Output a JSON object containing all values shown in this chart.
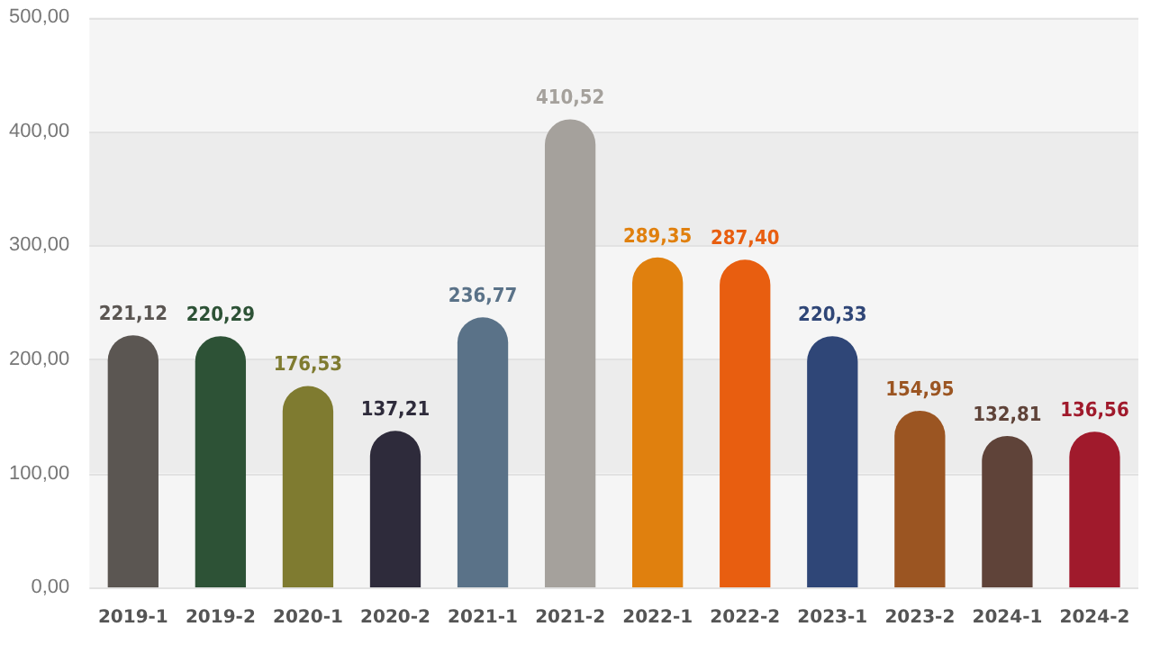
{
  "chart_data": {
    "type": "bar",
    "categories": [
      "2019-1",
      "2019-2",
      "2020-1",
      "2020-2",
      "2021-1",
      "2021-2",
      "2022-1",
      "2022-2",
      "2023-1",
      "2023-2",
      "2024-1",
      "2024-2"
    ],
    "values": [
      221.12,
      220.29,
      176.53,
      137.21,
      236.77,
      410.52,
      289.35,
      287.4,
      220.33,
      154.95,
      132.81,
      136.56
    ],
    "colors": [
      "#5b5652",
      "#2d5236",
      "#7f7b30",
      "#2e2b3b",
      "#5a7288",
      "#a5a19c",
      "#e0800e",
      "#e85e10",
      "#2f4677",
      "#9b5522",
      "#5f4339",
      "#a01a2c"
    ],
    "ylim": [
      0,
      500
    ],
    "yticks": [
      {
        "value": 0,
        "label": "0,00"
      },
      {
        "value": 100,
        "label": "100,00"
      },
      {
        "value": 200,
        "label": "200,00"
      },
      {
        "value": 300,
        "label": "300,00"
      },
      {
        "value": 400,
        "label": "400,00"
      },
      {
        "value": 500,
        "label": "500,00"
      }
    ],
    "value_labels": [
      "221,12",
      "220,29",
      "176,53",
      "137,21",
      "236,77",
      "410,52",
      "289,35",
      "287,40",
      "220,33",
      "154,95",
      "132,81",
      "136,56"
    ],
    "grid": "y",
    "legend": false
  }
}
